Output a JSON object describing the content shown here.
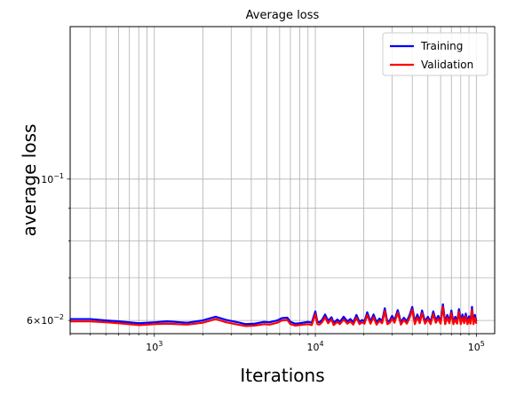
{
  "chart_data": {
    "type": "line",
    "title": "Average loss",
    "xlabel": "Iterations",
    "ylabel": "average loss",
    "xscale": "log",
    "yscale": "log",
    "xlim": [
      300,
      130000
    ],
    "ylim": [
      0.0572,
      0.1735
    ],
    "grid": true,
    "legend_position": "top-right",
    "x_ticks": [
      {
        "value": 1000,
        "base": "10",
        "exp": "3"
      },
      {
        "value": 10000,
        "base": "10",
        "exp": "4"
      },
      {
        "value": 100000,
        "base": "10",
        "exp": "5"
      }
    ],
    "y_ticks": [
      {
        "value": 0.1,
        "base": "10",
        "exp": "−1"
      },
      {
        "value": 0.06,
        "prefix": "6×",
        "base": "10",
        "exp": "−2"
      }
    ],
    "series": [
      {
        "name": "Training",
        "color": "#0000ff",
        "x": [
          300,
          400,
          500,
          600,
          800,
          1000,
          1200,
          1600,
          2000,
          2400,
          2800,
          3300,
          3700,
          4200,
          4800,
          5200,
          5800,
          6200,
          6700,
          7000,
          7500,
          8000,
          9000,
          9500,
          10000,
          10300,
          10600,
          11000,
          11500,
          12000,
          12600,
          13000,
          13700,
          14200,
          15000,
          15800,
          16500,
          17200,
          18000,
          18800,
          19500,
          20200,
          21000,
          22000,
          23000,
          24000,
          25000,
          26000,
          27000,
          28000,
          29000,
          30000,
          31000,
          32500,
          34000,
          35500,
          37000,
          38500,
          40000,
          41500,
          43000,
          44500,
          46000,
          48000,
          50000,
          52000,
          54000,
          56000,
          58000,
          60000,
          62000,
          64000,
          66000,
          68000,
          70000,
          72000,
          74000,
          76000,
          78000,
          80000,
          82000,
          84000,
          86000,
          88000,
          90000,
          92000,
          94000,
          96000,
          98000,
          100000
        ],
        "y": [
          0.0603,
          0.0603,
          0.06,
          0.0598,
          0.0594,
          0.0596,
          0.0598,
          0.0595,
          0.06,
          0.0608,
          0.0601,
          0.0596,
          0.0592,
          0.0593,
          0.0597,
          0.0596,
          0.06,
          0.0605,
          0.0606,
          0.0597,
          0.0593,
          0.0594,
          0.0597,
          0.0595,
          0.062,
          0.0597,
          0.0596,
          0.0601,
          0.0613,
          0.0599,
          0.0607,
          0.0595,
          0.0602,
          0.0597,
          0.0608,
          0.0598,
          0.0603,
          0.0596,
          0.0612,
          0.0597,
          0.0601,
          0.0598,
          0.0618,
          0.0598,
          0.0613,
          0.0596,
          0.0604,
          0.0599,
          0.0627,
          0.0597,
          0.06,
          0.061,
          0.06,
          0.0623,
          0.0596,
          0.0606,
          0.0598,
          0.0612,
          0.063,
          0.0597,
          0.0613,
          0.0599,
          0.0622,
          0.0598,
          0.0608,
          0.0597,
          0.062,
          0.06,
          0.061,
          0.0598,
          0.0636,
          0.0597,
          0.0612,
          0.0599,
          0.0622,
          0.0597,
          0.0608,
          0.0598,
          0.0625,
          0.0597,
          0.0613,
          0.0599,
          0.0615,
          0.0597,
          0.0609,
          0.0598,
          0.063,
          0.0597,
          0.0612,
          0.0598
        ]
      },
      {
        "name": "Validation",
        "color": "#ff0000",
        "x": [
          300,
          400,
          500,
          600,
          800,
          1000,
          1200,
          1600,
          2000,
          2400,
          2800,
          3300,
          3700,
          4200,
          4800,
          5200,
          5800,
          6200,
          6700,
          7000,
          7500,
          8000,
          9000,
          9500,
          10000,
          10300,
          10600,
          11000,
          11500,
          12000,
          12600,
          13000,
          13700,
          14200,
          15000,
          15800,
          16500,
          17200,
          18000,
          18800,
          19500,
          20200,
          21000,
          22000,
          23000,
          24000,
          25000,
          26000,
          27000,
          28000,
          29000,
          30000,
          31000,
          32500,
          34000,
          35500,
          37000,
          38500,
          40000,
          41500,
          43000,
          44500,
          46000,
          48000,
          50000,
          52000,
          54000,
          56000,
          58000,
          60000,
          62000,
          64000,
          66000,
          68000,
          70000,
          72000,
          74000,
          76000,
          78000,
          80000,
          82000,
          84000,
          86000,
          88000,
          90000,
          92000,
          94000,
          96000,
          98000,
          100000
        ],
        "y": [
          0.0598,
          0.0598,
          0.0596,
          0.0594,
          0.059,
          0.0592,
          0.0593,
          0.0591,
          0.0595,
          0.0603,
          0.0596,
          0.0591,
          0.0588,
          0.0589,
          0.0592,
          0.0591,
          0.0595,
          0.06,
          0.0601,
          0.0592,
          0.0589,
          0.059,
          0.0592,
          0.059,
          0.0614,
          0.0592,
          0.0591,
          0.0596,
          0.0607,
          0.0594,
          0.0602,
          0.059,
          0.0597,
          0.0592,
          0.0602,
          0.0593,
          0.0598,
          0.0591,
          0.0606,
          0.0592,
          0.0596,
          0.0593,
          0.0612,
          0.0593,
          0.0607,
          0.0591,
          0.0599,
          0.0594,
          0.0621,
          0.0592,
          0.0595,
          0.0604,
          0.0595,
          0.0617,
          0.0591,
          0.0601,
          0.0593,
          0.0606,
          0.0624,
          0.0592,
          0.0607,
          0.0594,
          0.0616,
          0.0593,
          0.0603,
          0.0592,
          0.0614,
          0.0595,
          0.0604,
          0.0593,
          0.063,
          0.0592,
          0.0606,
          0.0594,
          0.0616,
          0.0592,
          0.0602,
          0.0593,
          0.0619,
          0.0592,
          0.0607,
          0.0594,
          0.0609,
          0.0592,
          0.0603,
          0.0593,
          0.0624,
          0.0592,
          0.0606,
          0.0593
        ]
      }
    ]
  }
}
